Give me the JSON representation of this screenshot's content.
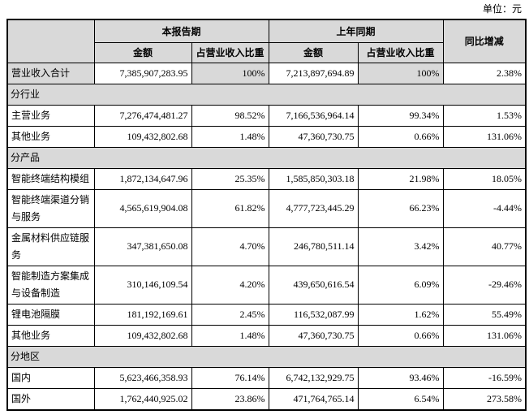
{
  "unit_label": "单位：元",
  "table": {
    "header": {
      "current_period": "本报告期",
      "prior_period": "上年同期",
      "yoy_change": "同比增减",
      "amount": "金额",
      "pct_of_revenue": "占营业收入比重"
    },
    "shading_color": "#d9d9d9",
    "border_color": "#000000",
    "rows": [
      {
        "type": "data",
        "emphasis": true,
        "label": "营业收入合计",
        "cur_amount": "7,385,907,283.95",
        "cur_pct": "100%",
        "prior_amount": "7,213,897,694.89",
        "prior_pct": "100%",
        "yoy": "2.38%"
      },
      {
        "type": "section",
        "label": "分行业"
      },
      {
        "type": "data",
        "emphasis": false,
        "label": "主营业务",
        "cur_amount": "7,276,474,481.27",
        "cur_pct": "98.52%",
        "prior_amount": "7,166,536,964.14",
        "prior_pct": "99.34%",
        "yoy": "1.53%"
      },
      {
        "type": "data",
        "emphasis": false,
        "label": "其他业务",
        "cur_amount": "109,432,802.68",
        "cur_pct": "1.48%",
        "prior_amount": "47,360,730.75",
        "prior_pct": "0.66%",
        "yoy": "131.06%"
      },
      {
        "type": "section",
        "label": "分产品"
      },
      {
        "type": "data",
        "emphasis": false,
        "label": "智能终端结构模组",
        "cur_amount": "1,872,134,647.96",
        "cur_pct": "25.35%",
        "prior_amount": "1,585,850,303.18",
        "prior_pct": "21.98%",
        "yoy": "18.05%"
      },
      {
        "type": "data",
        "emphasis": false,
        "label": "智能终端渠道分销与服务",
        "cur_amount": "4,565,619,904.08",
        "cur_pct": "61.82%",
        "prior_amount": "4,777,723,445.29",
        "prior_pct": "66.23%",
        "yoy": "-4.44%"
      },
      {
        "type": "data",
        "emphasis": false,
        "label": "金属材料供应链服务",
        "cur_amount": "347,381,650.08",
        "cur_pct": "4.70%",
        "prior_amount": "246,780,511.14",
        "prior_pct": "3.42%",
        "yoy": "40.77%"
      },
      {
        "type": "data",
        "emphasis": false,
        "label": "智能制造方案集成与设备制造",
        "cur_amount": "310,146,109.54",
        "cur_pct": "4.20%",
        "prior_amount": "439,650,616.54",
        "prior_pct": "6.09%",
        "yoy": "-29.46%"
      },
      {
        "type": "data",
        "emphasis": false,
        "label": "锂电池隔膜",
        "cur_amount": "181,192,169.61",
        "cur_pct": "2.45%",
        "prior_amount": "116,532,087.99",
        "prior_pct": "1.62%",
        "yoy": "55.49%"
      },
      {
        "type": "data",
        "emphasis": false,
        "label": "其他业务",
        "cur_amount": "109,432,802.68",
        "cur_pct": "1.48%",
        "prior_amount": "47,360,730.75",
        "prior_pct": "0.66%",
        "yoy": "131.06%"
      },
      {
        "type": "section",
        "label": "分地区"
      },
      {
        "type": "data",
        "emphasis": false,
        "label": "国内",
        "cur_amount": "5,623,466,358.93",
        "cur_pct": "76.14%",
        "prior_amount": "6,742,132,929.75",
        "prior_pct": "93.46%",
        "yoy": "-16.59%"
      },
      {
        "type": "data",
        "emphasis": false,
        "label": "国外",
        "cur_amount": "1,762,440,925.02",
        "cur_pct": "23.86%",
        "prior_amount": "471,764,765.14",
        "prior_pct": "6.54%",
        "yoy": "273.58%"
      }
    ]
  }
}
